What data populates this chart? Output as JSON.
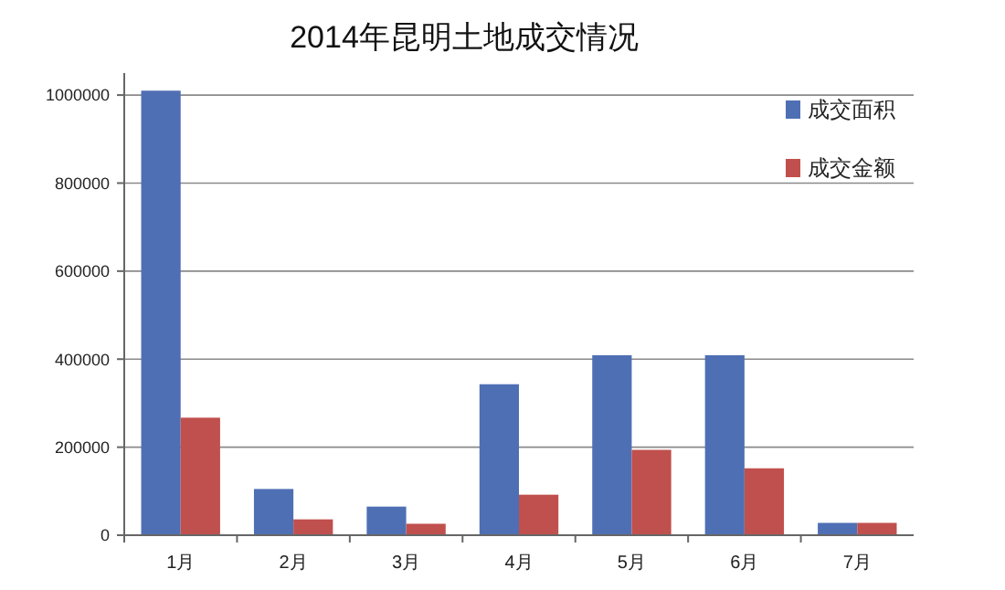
{
  "chart_data": {
    "type": "bar",
    "title": "2014年昆明土地成交情况",
    "categories": [
      "1月",
      "2月",
      "3月",
      "4月",
      "5月",
      "6月",
      "7月"
    ],
    "series": [
      {
        "name": "成交面积",
        "color": "#4f6fb4",
        "values": [
          1010000,
          105000,
          65000,
          343000,
          409000,
          409000,
          28000
        ]
      },
      {
        "name": "成交金额",
        "color": "#c0504d",
        "values": [
          267000,
          36000,
          26000,
          92000,
          194000,
          152000,
          28000
        ]
      }
    ],
    "ylim": [
      0,
      1050000
    ],
    "yticks": [
      0,
      200000,
      400000,
      600000,
      800000,
      1000000
    ],
    "grid": "y",
    "legend": "top right"
  }
}
